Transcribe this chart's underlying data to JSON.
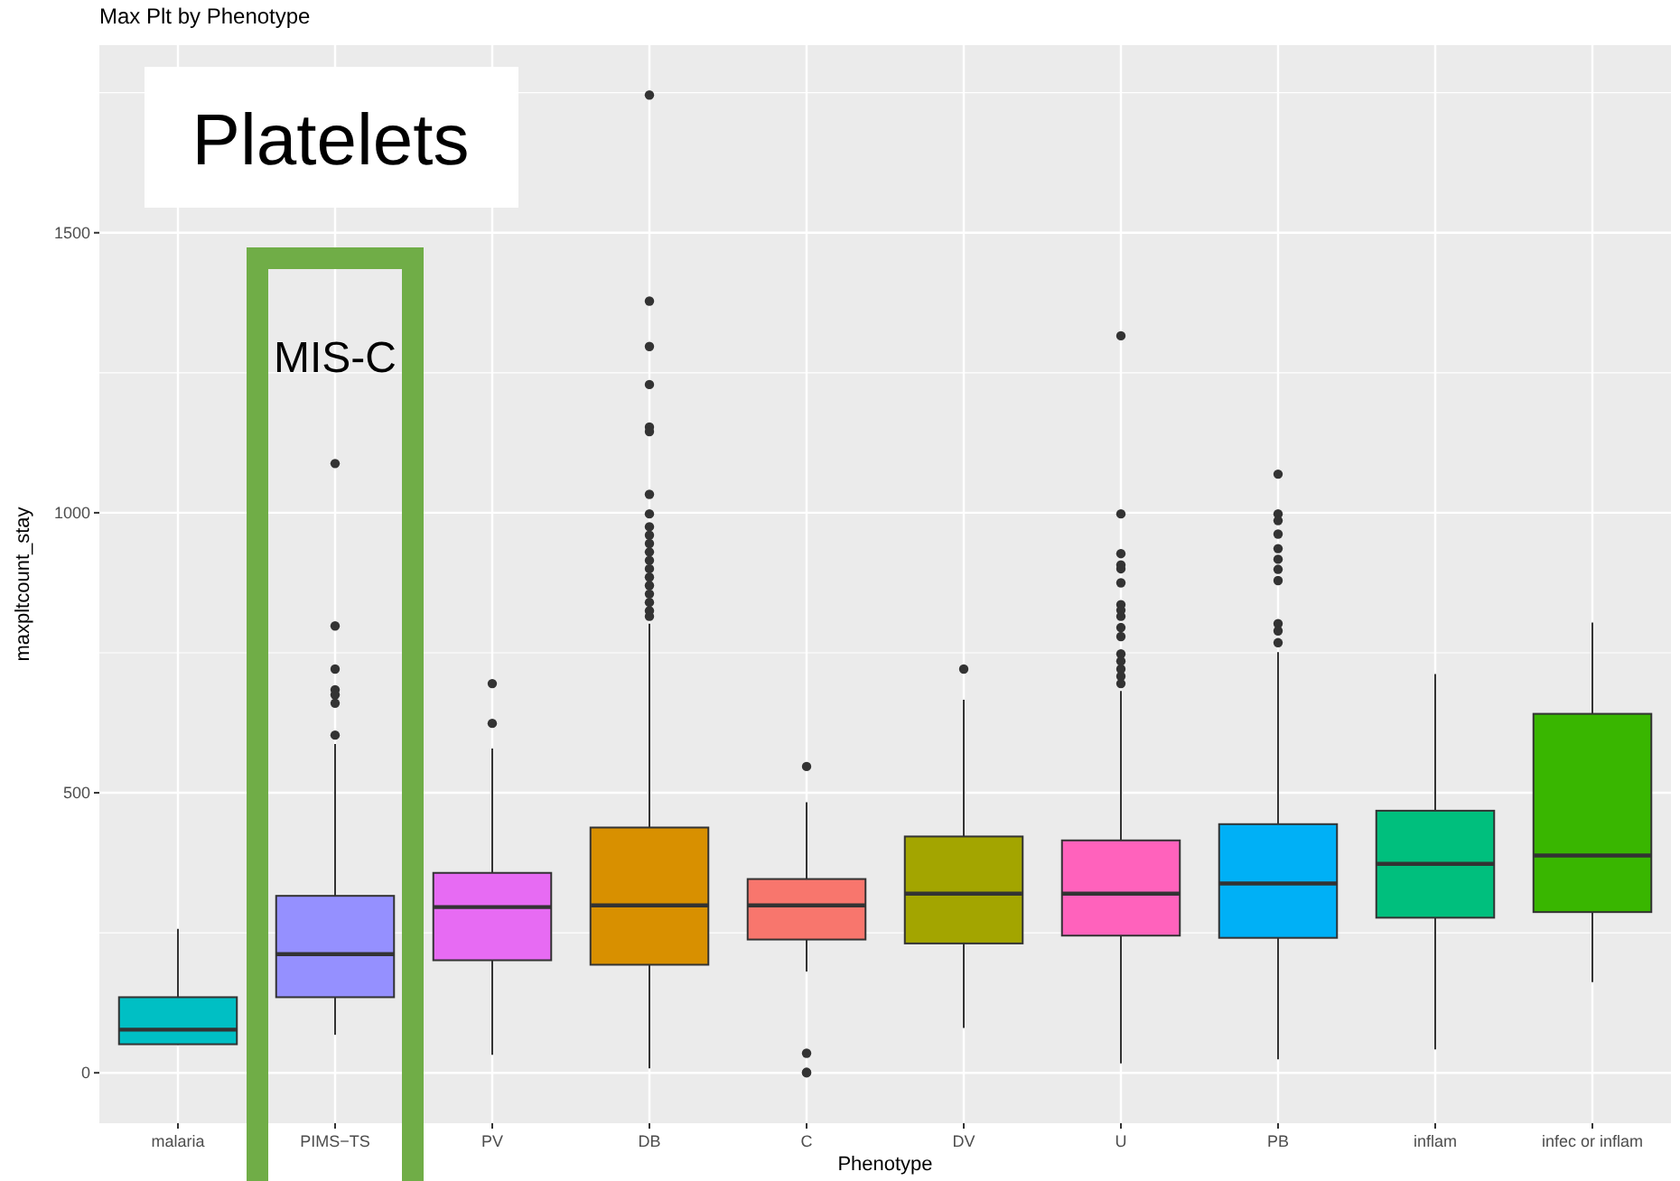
{
  "chart_data": {
    "type": "box",
    "title": "Max Plt by Phenotype",
    "xlabel": "Phenotype",
    "ylabel": "maxpltcount_stay",
    "categories": [
      "malaria",
      "PIMS−TS",
      "PV",
      "DB",
      "C",
      "DV",
      "U",
      "PB",
      "inflam",
      "infec or inflam"
    ],
    "colors": [
      "#00bfc4",
      "#9590ff",
      "#e76bf3",
      "#d89000",
      "#f8766d",
      "#a3a500",
      "#ff62bc",
      "#00b0f6",
      "#00bf7d",
      "#39b600"
    ],
    "boxes": [
      {
        "low": 50,
        "q1": 51,
        "median": 77,
        "q3": 135,
        "high": 257
      },
      {
        "low": 68,
        "q1": 135,
        "median": 212,
        "q3": 316,
        "high": 587,
        "outliers": [
          1088,
          798,
          721,
          684,
          675,
          660,
          603
        ]
      },
      {
        "low": 32,
        "q1": 201,
        "median": 296,
        "q3": 357,
        "high": 579,
        "outliers": [
          695,
          624
        ]
      },
      {
        "low": 8,
        "q1": 193,
        "median": 299,
        "q3": 438,
        "high": 802,
        "outliers": [
          1746,
          1378,
          1297,
          1229,
          1153,
          1145,
          1033,
          998,
          975,
          960,
          945,
          930,
          915,
          900,
          885,
          870,
          855,
          840,
          825,
          815
        ]
      },
      {
        "low": 181,
        "q1": 238,
        "median": 299,
        "q3": 346,
        "high": 483,
        "outliers": [
          547,
          35,
          1,
          0
        ]
      },
      {
        "low": 80,
        "q1": 231,
        "median": 320,
        "q3": 422,
        "high": 666,
        "outliers": [
          721
        ]
      },
      {
        "low": 17,
        "q1": 245,
        "median": 320,
        "q3": 415,
        "high": 682,
        "outliers": [
          1316,
          998,
          927,
          907,
          900,
          875,
          836,
          826,
          815,
          795,
          779,
          748,
          735,
          721,
          708,
          695
        ]
      },
      {
        "low": 24,
        "q1": 241,
        "median": 338,
        "q3": 444,
        "high": 751,
        "outliers": [
          1069,
          998,
          986,
          962,
          936,
          917,
          899,
          879,
          802,
          789,
          768
        ]
      },
      {
        "low": 42,
        "q1": 277,
        "median": 373,
        "q3": 468,
        "high": 712
      },
      {
        "low": 162,
        "q1": 287,
        "median": 388,
        "q3": 641,
        "high": 804
      }
    ],
    "ylim": [
      -90,
      1835
    ],
    "yticks": [
      0,
      500,
      1000,
      1500
    ],
    "grid": true,
    "annotations": [
      "Platelets",
      "MIS-C"
    ]
  }
}
